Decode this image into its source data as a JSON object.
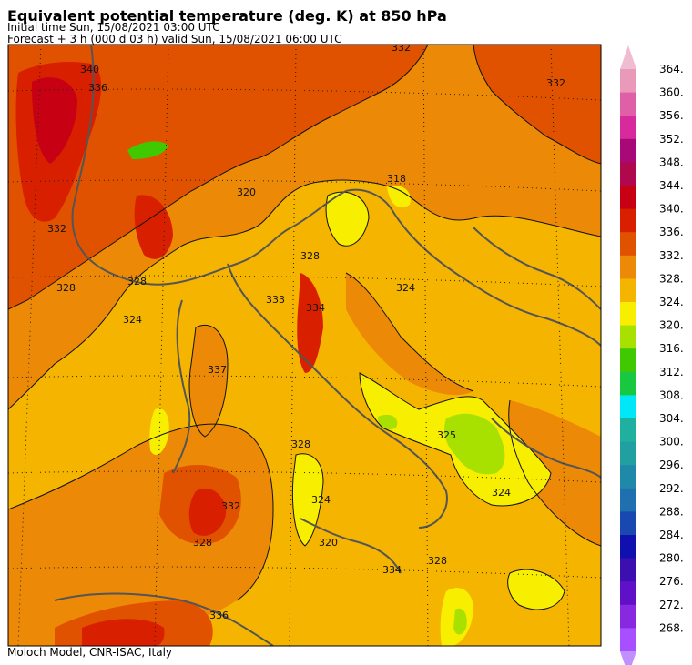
{
  "header": {
    "title": "Equivalent potential temperature (deg. K) at 850 hPa",
    "initial_time": "Initial time  Sun, 15/08/2021  03:00 UTC",
    "forecast": "Forecast  +   3 h  (000 d 03 h)  valid Sun, 15/08/2021 06:00 UTC"
  },
  "footer": {
    "credit": "Moloch Model, CNR-ISAC, Italy"
  },
  "colorbar": {
    "levels": [
      "364.",
      "360.",
      "356.",
      "352.",
      "348.",
      "344.",
      "340.",
      "336.",
      "332.",
      "328.",
      "324.",
      "320.",
      "316.",
      "312.",
      "308.",
      "304.",
      "300.",
      "296.",
      "292.",
      "288.",
      "284.",
      "280.",
      "276.",
      "272.",
      "268."
    ],
    "colors": [
      "#e89ab8",
      "#e060a8",
      "#d82a9c",
      "#a80878",
      "#b0084c",
      "#c80014",
      "#d82000",
      "#e05200",
      "#ec8a08",
      "#f4b400",
      "#f8ee00",
      "#a8e000",
      "#40c800",
      "#18c840",
      "#00e8f8",
      "#20b0a0",
      "#20a0a0",
      "#2088a8",
      "#2070b0",
      "#1848b0",
      "#1010b0",
      "#3c10b0",
      "#6010c8",
      "#8828e0",
      "#a850ff"
    ],
    "top_cap": "#f0bcd0",
    "bottom_cap": "#c090ff"
  },
  "map": {
    "background_color": "#f4b400",
    "contour_labels": [
      "340",
      "336",
      "332",
      "328",
      "324",
      "320",
      "318",
      "325",
      "333",
      "334",
      "337",
      "332",
      "328",
      "324",
      "320",
      "332",
      "332",
      "328",
      "328",
      "324",
      "328",
      "334",
      "336",
      "328",
      "324"
    ]
  }
}
